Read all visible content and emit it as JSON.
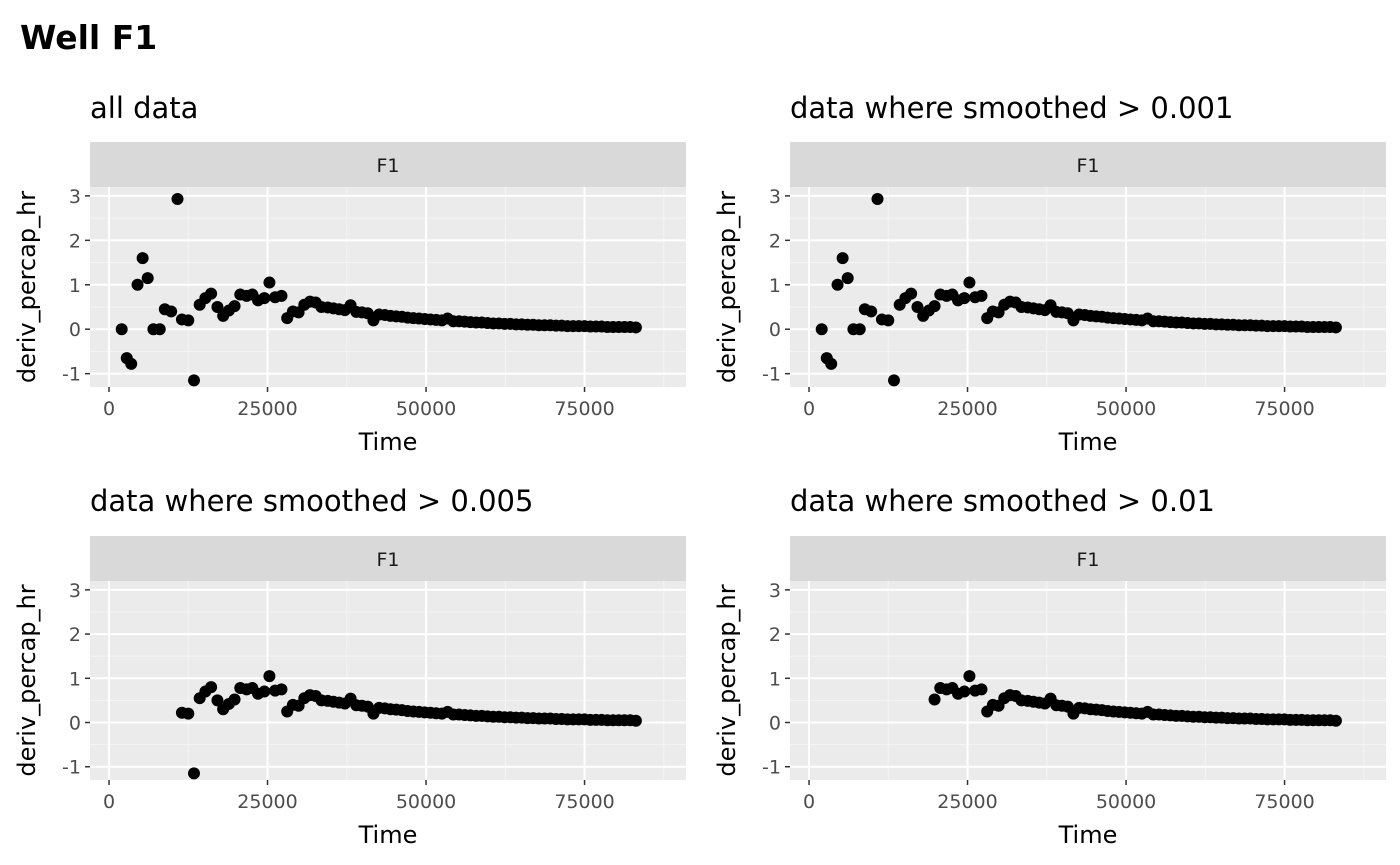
{
  "title": "Well F1",
  "colors": {
    "panel_bg": "#EBEBEB",
    "strip_bg": "#D9D9D9",
    "grid_major": "#FFFFFF",
    "grid_minor": "#F5F5F5",
    "point": "#000000",
    "tick_text": "#4D4D4D",
    "text": "#1A1A1A"
  },
  "chart_data": [
    {
      "type": "scatter",
      "title": "all data",
      "facet": "F1",
      "xlabel": "Time",
      "ylabel": "deriv_percap_hr",
      "xlim": [
        -3000,
        91000
      ],
      "ylim": [
        -1.3,
        3.2
      ],
      "xticks": [
        0,
        25000,
        50000,
        75000
      ],
      "xtick_labels": [
        "0",
        "25000",
        "50000",
        "75000"
      ],
      "yticks": [
        -1,
        0,
        1,
        2,
        3
      ],
      "ytick_labels": [
        "-1",
        "0",
        "1",
        "2",
        "3"
      ],
      "grid": true,
      "series": [
        {
          "x": [],
          "y": []
        }
      ]
    },
    {
      "type": "scatter",
      "title": "data where smoothed > 0.001",
      "facet": "F1",
      "xlabel": "Time",
      "ylabel": "deriv_percap_hr",
      "xlim": [
        -3000,
        91000
      ],
      "ylim": [
        -1.3,
        3.2
      ],
      "xticks": [
        0,
        25000,
        50000,
        75000
      ],
      "xtick_labels": [
        "0",
        "25000",
        "50000",
        "75000"
      ],
      "yticks": [
        -1,
        0,
        1,
        2,
        3
      ],
      "ytick_labels": [
        "-1",
        "0",
        "1",
        "2",
        "3"
      ],
      "grid": true,
      "series": [
        {
          "x": [],
          "y": []
        }
      ]
    },
    {
      "type": "scatter",
      "title": "data where smoothed > 0.005",
      "facet": "F1",
      "xlabel": "Time",
      "ylabel": "deriv_percap_hr",
      "xlim": [
        -3000,
        91000
      ],
      "ylim": [
        -1.3,
        3.2
      ],
      "xticks": [
        0,
        25000,
        50000,
        75000
      ],
      "xtick_labels": [
        "0",
        "25000",
        "50000",
        "75000"
      ],
      "yticks": [
        -1,
        0,
        1,
        2,
        3
      ],
      "ytick_labels": [
        "-1",
        "0",
        "1",
        "2",
        "3"
      ],
      "grid": true,
      "series": [
        {
          "x": [],
          "y": []
        }
      ]
    },
    {
      "type": "scatter",
      "title": "data where smoothed > 0.01",
      "facet": "F1",
      "xlabel": "Time",
      "ylabel": "deriv_percap_hr",
      "xlim": [
        -3000,
        91000
      ],
      "ylim": [
        -1.3,
        3.2
      ],
      "xticks": [
        0,
        25000,
        50000,
        75000
      ],
      "xtick_labels": [
        "0",
        "25000",
        "50000",
        "75000"
      ],
      "yticks": [
        -1,
        0,
        1,
        2,
        3
      ],
      "ytick_labels": [
        "-1",
        "0",
        "1",
        "2",
        "3"
      ],
      "grid": true,
      "series": [
        {
          "x": [],
          "y": []
        }
      ]
    }
  ]
}
